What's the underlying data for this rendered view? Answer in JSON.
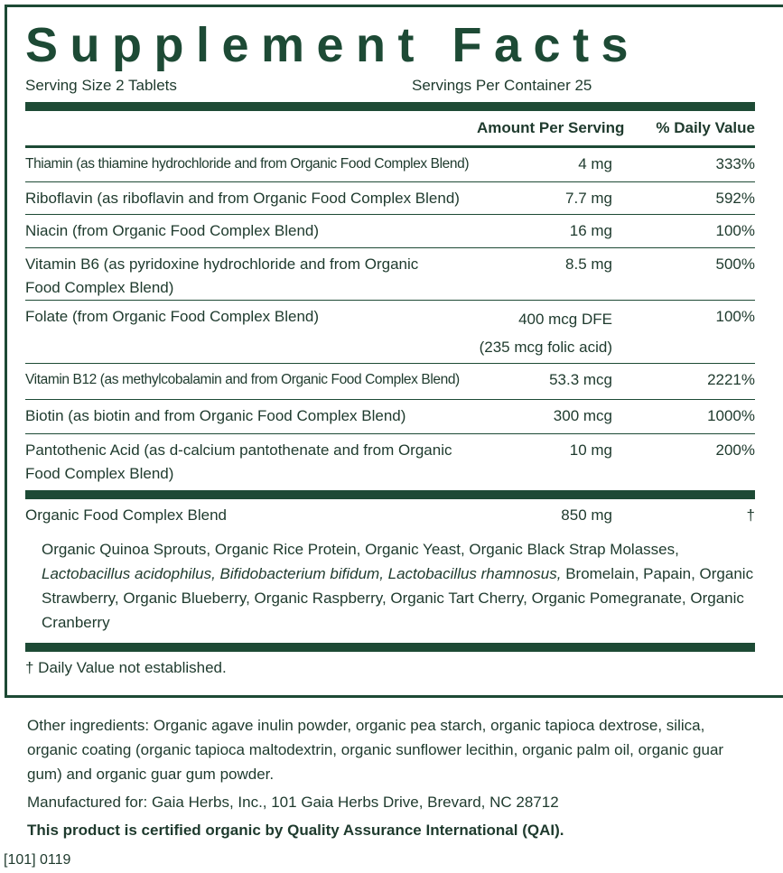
{
  "header": {
    "title": "Supplement Facts",
    "serving_size": "Serving Size 2 Tablets",
    "servings_per_container": "Servings Per Container 25"
  },
  "columns": {
    "amount": "Amount Per Serving",
    "daily_value": "% Daily Value"
  },
  "rows": [
    {
      "name": "Thiamin (as thiamine hydrochloride and from Organic Food Complex Blend)",
      "amount": "4 mg",
      "daily_value": "333%"
    },
    {
      "name": "Riboflavin (as riboflavin and from Organic Food Complex Blend)",
      "amount": "7.7 mg",
      "daily_value": "592%"
    },
    {
      "name": "Niacin (from Organic Food Complex Blend)",
      "amount": "16 mg",
      "daily_value": "100%"
    },
    {
      "name": "Vitamin B6 (as pyridoxine hydrochloride and from Organic Food Complex Blend)",
      "amount": "8.5 mg",
      "daily_value": "500%"
    },
    {
      "name": "Folate (from Organic Food Complex Blend)",
      "amount": "400 mcg DFE",
      "amount_note": "(235 mcg folic acid)",
      "daily_value": "100%"
    },
    {
      "name": "Vitamin B12 (as methylcobalamin and from Organic Food Complex Blend)",
      "amount": "53.3 mcg",
      "daily_value": "2221%"
    },
    {
      "name": "Biotin (as biotin and from Organic Food Complex Blend)",
      "amount": "300 mcg",
      "daily_value": "1000%"
    },
    {
      "name": "Pantothenic Acid (as d-calcium pantothenate and from Organic Food Complex Blend)",
      "amount": "10 mg",
      "daily_value": "200%"
    }
  ],
  "blend": {
    "name": "Organic Food Complex Blend",
    "amount": "850 mg",
    "daily_value": "†",
    "ingredients": {
      "before": "Organic Quinoa Sprouts, Organic Rice Protein, Organic Yeast, Organic Black Strap Molasses, ",
      "italic": "Lactobacillus acidophilus, Bifidobacterium bifidum, Lactobacillus rhamnosus,",
      "after": " Bromelain, Papain, Organic Strawberry, Organic Blueberry, Organic Raspberry, Organic Tart Cherry, Organic Pomegranate, Organic Cranberry"
    }
  },
  "footnote": "† Daily Value not established.",
  "other_ingredients": "Other ingredients: Organic agave inulin powder, organic pea starch, organic tapioca dextrose, silica, organic coating (organic tapioca maltodextrin, organic sunflower lecithin, organic palm oil, organic guar gum) and organic guar gum powder.",
  "manufacturer": "Manufactured for: Gaia Herbs, Inc., 101 Gaia Herbs Drive, Brevard, NC 28712",
  "certification": "This product is certified organic by Quality Assurance International (QAI).",
  "code": "[101] 0119"
}
